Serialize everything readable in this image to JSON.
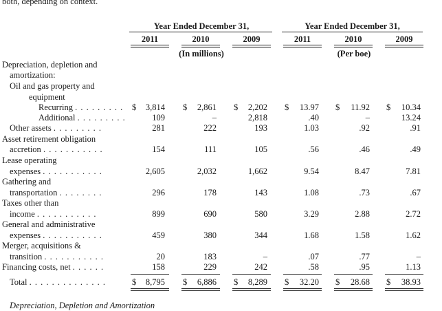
{
  "intro_text": "both, depending on context.",
  "groups": {
    "left": "Year Ended December 31,",
    "right": "Year Ended December 31,"
  },
  "years": [
    "2011",
    "2010",
    "2009",
    "2011",
    "2010",
    "2009"
  ],
  "units": {
    "left": "(In millions)",
    "right": "(Per boe)"
  },
  "labels": {
    "dda_1": "Depreciation, depletion and",
    "dda_2": "amortization:",
    "ogp_1": "Oil and gas property and",
    "ogp_2": "equipment",
    "recurring": "Recurring",
    "additional": "Additional",
    "other_assets": "Other assets",
    "aro_1": "Asset retirement obligation",
    "aro_2": "accretion",
    "loe_1": "Lease operating",
    "loe_2": "expenses",
    "gat_1": "Gathering and",
    "gat_2": "transportation",
    "tax_1": "Taxes other than",
    "tax_2": "income",
    "gna_1": "General and administrative",
    "gna_2": "expenses",
    "mat_1": "Merger, acquisitions &",
    "mat_2": "transition",
    "fin": "Financing costs, net",
    "total": "Total"
  },
  "leaders": {
    "recurring": ". . . . . . . . .",
    "additional": ". . . . . . . . .",
    "other_assets": ". . . . . . . . .",
    "aro": ". . . . . . . . . . .",
    "loe": ". . . . . . . . . . .",
    "gat": ". . . . . . . .",
    "tax": ". . . . . . . . . . .",
    "gna": ". . . . . . . . . . .",
    "mat": ". . . . . . . . . . .",
    "fin": ". . . . . .",
    "total": ". . . . . . . . . . . . . ."
  },
  "currency_symbol": "$",
  "rows": {
    "recurring": [
      "3,814",
      "2,861",
      "2,202",
      "13.97",
      "11.92",
      "10.34"
    ],
    "additional": [
      "109",
      "–",
      "2,818",
      ".40",
      "–",
      "13.24"
    ],
    "other_assets": [
      "281",
      "222",
      "193",
      "1.03",
      ".92",
      ".91"
    ],
    "aro": [
      "154",
      "111",
      "105",
      ".56",
      ".46",
      ".49"
    ],
    "loe": [
      "2,605",
      "2,032",
      "1,662",
      "9.54",
      "8.47",
      "7.81"
    ],
    "gat": [
      "296",
      "178",
      "143",
      "1.08",
      ".73",
      ".67"
    ],
    "tax": [
      "899",
      "690",
      "580",
      "3.29",
      "2.88",
      "2.72"
    ],
    "gna": [
      "459",
      "380",
      "344",
      "1.68",
      "1.58",
      "1.62"
    ],
    "mat": [
      "20",
      "183",
      "–",
      ".07",
      ".77",
      "–"
    ],
    "fin": [
      "158",
      "229",
      "242",
      ".58",
      ".95",
      "1.13"
    ],
    "total": [
      "8,795",
      "6,886",
      "8,289",
      "32.20",
      "28.68",
      "38.93"
    ]
  },
  "next_section_heading": "Depreciation, Depletion and Amortization"
}
